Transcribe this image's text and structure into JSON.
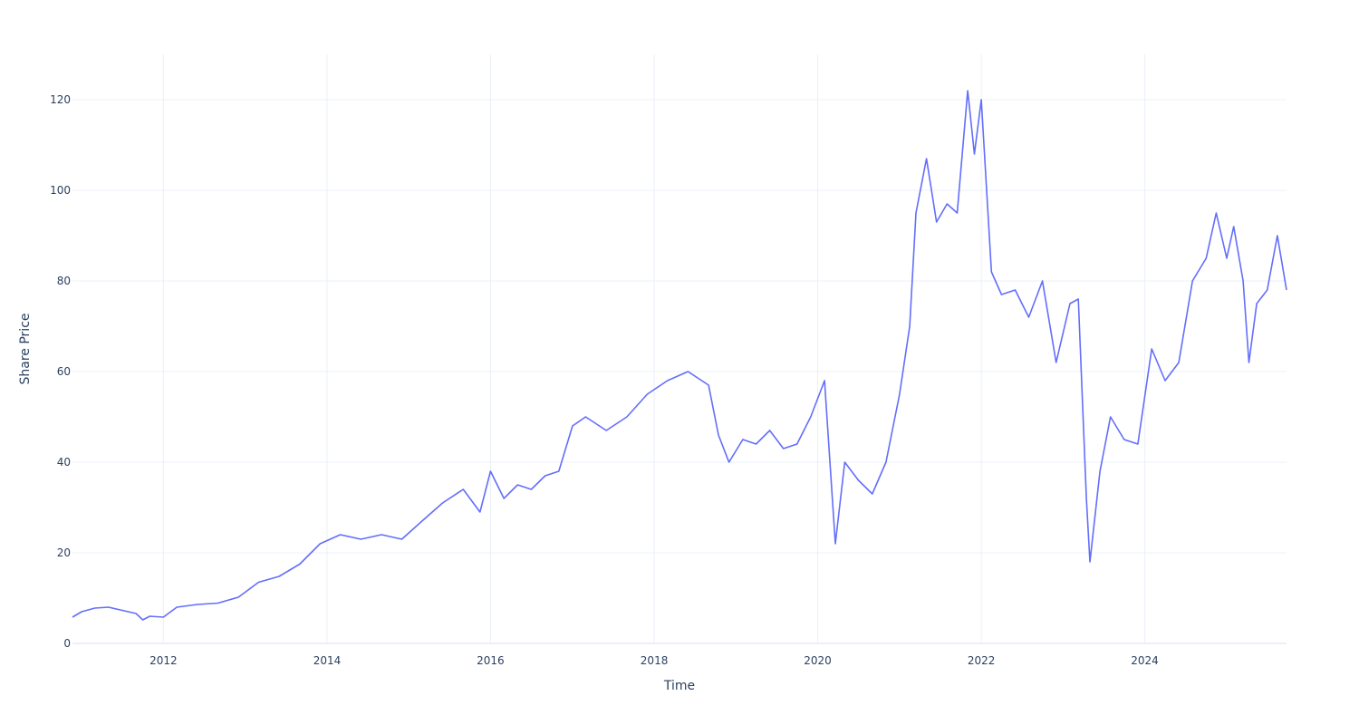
{
  "chart_data": {
    "type": "line",
    "title": "",
    "xlabel": "Time",
    "ylabel": "Share Price",
    "xlim": [
      "2010-11-21",
      "2025-09-25"
    ],
    "ylim": [
      0,
      130
    ],
    "x_ticks": [
      "2012",
      "2014",
      "2016",
      "2018",
      "2020",
      "2022",
      "2024"
    ],
    "y_ticks": [
      0,
      20,
      40,
      60,
      80,
      100,
      120
    ],
    "grid": true,
    "legend": "none",
    "colors": {
      "line": "#636efa",
      "grid": "#ebf0f8",
      "zeroline": "#ebf0f8",
      "text": "#2a3f5f"
    },
    "series": [
      {
        "x": [
          "2010-11-21",
          "2011-01-01",
          "2011-03-01",
          "2011-05-01",
          "2011-07-01",
          "2011-09-01",
          "2011-10-01",
          "2011-11-01",
          "2012-01-01",
          "2012-03-01",
          "2012-06-01",
          "2012-09-01",
          "2012-12-01",
          "2013-03-01",
          "2013-06-01",
          "2013-09-01",
          "2013-12-01",
          "2014-03-01",
          "2014-06-01",
          "2014-09-01",
          "2014-12-01",
          "2015-03-01",
          "2015-06-01",
          "2015-09-01",
          "2015-11-15",
          "2016-01-01",
          "2016-03-01",
          "2016-05-01",
          "2016-07-01",
          "2016-09-01",
          "2016-11-01",
          "2017-01-01",
          "2017-03-01",
          "2017-06-01",
          "2017-09-01",
          "2017-12-01",
          "2018-03-01",
          "2018-06-01",
          "2018-09-01",
          "2018-10-15",
          "2018-12-01",
          "2019-02-01",
          "2019-04-01",
          "2019-06-01",
          "2019-08-01",
          "2019-10-01",
          "2019-12-01",
          "2020-02-01",
          "2020-03-20",
          "2020-05-01",
          "2020-07-01",
          "2020-09-01",
          "2020-11-01",
          "2021-01-01",
          "2021-02-15",
          "2021-03-15",
          "2021-05-01",
          "2021-06-15",
          "2021-08-01",
          "2021-09-15",
          "2021-11-01",
          "2021-12-01",
          "2022-01-01",
          "2022-02-15",
          "2022-04-01",
          "2022-06-01",
          "2022-08-01",
          "2022-10-01",
          "2022-12-01",
          "2023-02-01",
          "2023-03-10",
          "2023-04-15",
          "2023-05-01",
          "2023-06-15",
          "2023-08-01",
          "2023-10-01",
          "2023-12-01",
          "2024-02-01",
          "2024-04-01",
          "2024-06-01",
          "2024-08-01",
          "2024-10-01",
          "2024-11-15",
          "2025-01-01",
          "2025-02-01",
          "2025-03-15",
          "2025-04-10",
          "2025-05-15",
          "2025-07-01",
          "2025-08-15",
          "2025-09-01",
          "2025-09-25"
        ],
        "y": [
          5.8,
          7.0,
          7.8,
          8.0,
          7.3,
          6.6,
          5.2,
          6.0,
          5.8,
          8.0,
          8.6,
          8.9,
          10.2,
          13.5,
          14.8,
          17.5,
          22.0,
          24.0,
          23.0,
          24.0,
          23.0,
          27.0,
          31.0,
          34.0,
          29.0,
          38.0,
          32.0,
          35.0,
          34.0,
          37.0,
          38.0,
          48.0,
          50.0,
          47.0,
          50.0,
          55.0,
          58.0,
          60.0,
          57.0,
          46.0,
          40.0,
          45.0,
          44.0,
          47.0,
          43.0,
          44.0,
          50.0,
          58.0,
          22.0,
          40.0,
          36.0,
          33.0,
          40.0,
          55.0,
          70.0,
          95.0,
          107.0,
          93.0,
          97.0,
          95.0,
          122.0,
          108.0,
          120.0,
          82.0,
          77.0,
          78.0,
          72.0,
          80.0,
          62.0,
          75.0,
          76.0,
          32.0,
          18.0,
          38.0,
          50.0,
          45.0,
          44.0,
          65.0,
          58.0,
          62.0,
          80.0,
          85.0,
          95.0,
          85.0,
          92.0,
          80.0,
          62.0,
          75.0,
          78.0,
          90.0,
          85.0,
          78.0
        ]
      }
    ]
  }
}
